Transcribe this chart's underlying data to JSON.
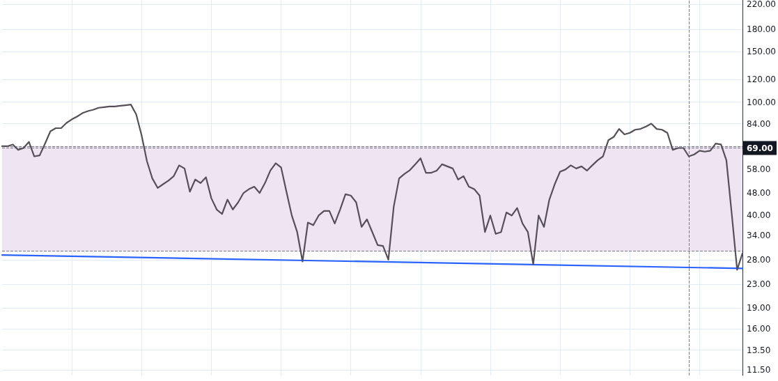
{
  "chart_data": {
    "type": "line",
    "categories": [
      null,
      null,
      null,
      null,
      null,
      null,
      null,
      null,
      null,
      null,
      null,
      null,
      null,
      null,
      null,
      null,
      null,
      null,
      null,
      null,
      null,
      null,
      null,
      null,
      null,
      null,
      null,
      null,
      null,
      null,
      null,
      null,
      null,
      null,
      null,
      null,
      null,
      null,
      null,
      null,
      null,
      null,
      null,
      null,
      null,
      null,
      null,
      null,
      null,
      null,
      null,
      null,
      null,
      null,
      null,
      null,
      null,
      null,
      null,
      null,
      null,
      null,
      null,
      null,
      null,
      null,
      null,
      null,
      null,
      null,
      null,
      null,
      null,
      null,
      null,
      null,
      null,
      null,
      null,
      null,
      null,
      null,
      null,
      null,
      null,
      null,
      null,
      null,
      null,
      null,
      null,
      null,
      null,
      null,
      null,
      null,
      null,
      null,
      null,
      null,
      null,
      null,
      null,
      null,
      null,
      null,
      null,
      null,
      null,
      null,
      null,
      null,
      null,
      null,
      null,
      null,
      null,
      null,
      null,
      null,
      null,
      null,
      null,
      null,
      null,
      null,
      null,
      null,
      null,
      null,
      null,
      null,
      null,
      null,
      null,
      null,
      null,
      null,
      null
    ],
    "series": [
      {
        "type": "line",
        "color": "#2962ff",
        "values": [
          29.1,
          null,
          null,
          null,
          null,
          null,
          null,
          null,
          null,
          null,
          null,
          null,
          null,
          null,
          null,
          null,
          null,
          null,
          null,
          null,
          null,
          null,
          null,
          null,
          null,
          null,
          null,
          null,
          null,
          null,
          null,
          null,
          null,
          null,
          null,
          null,
          null,
          null,
          null,
          null,
          null,
          null,
          null,
          null,
          null,
          null,
          null,
          null,
          null,
          null,
          null,
          null,
          null,
          null,
          null,
          null,
          null,
          null,
          null,
          null,
          null,
          null,
          null,
          null,
          null,
          null,
          null,
          null,
          null,
          null,
          null,
          null,
          null,
          null,
          null,
          null,
          null,
          null,
          null,
          null,
          null,
          null,
          null,
          null,
          null,
          null,
          null,
          null,
          null,
          null,
          null,
          null,
          null,
          null,
          null,
          null,
          null,
          null,
          null,
          null,
          null,
          null,
          null,
          null,
          null,
          null,
          null,
          null,
          null,
          null,
          null,
          null,
          null,
          null,
          null,
          null,
          null,
          null,
          null,
          null,
          null,
          null,
          null,
          null,
          null,
          null,
          null,
          null,
          null,
          null,
          null,
          null,
          null,
          null,
          null,
          null,
          null,
          null,
          26.1
        ]
      },
      {
        "color": "#555058",
        "values": [
          70,
          70,
          71,
          68,
          69,
          72.5,
          64.5,
          65,
          71.5,
          79,
          81,
          81,
          84.5,
          87,
          89,
          91.5,
          93,
          94,
          95.5,
          96,
          96.5,
          96.5,
          97,
          97.5,
          98,
          90.5,
          76.5,
          62,
          54,
          50,
          51.5,
          53,
          55,
          60,
          58.5,
          48.5,
          53.5,
          52,
          54.5,
          46,
          42,
          40.5,
          45.5,
          42,
          44.5,
          48,
          49.5,
          50.5,
          48,
          52,
          57.5,
          61,
          59,
          48.5,
          40,
          35,
          27.6,
          37.8,
          37,
          40,
          41.5,
          41.5,
          37.5,
          42,
          47.5,
          47,
          44.5,
          36.5,
          38.8,
          35,
          31.5,
          31.3,
          28,
          43,
          54,
          56,
          57.7,
          60.5,
          63.5,
          56.5,
          56.5,
          57.5,
          60.5,
          59.5,
          58.5,
          53.5,
          55,
          50.5,
          49.5,
          47,
          35,
          40,
          34.5,
          35,
          41,
          40,
          42.5,
          37.5,
          35,
          27,
          40,
          36.5,
          45.5,
          51.5,
          57,
          58,
          60,
          58.5,
          59.5,
          57.5,
          60,
          62.5,
          64.5,
          73.5,
          75.5,
          80.5,
          77,
          78,
          80,
          80.5,
          82,
          84,
          80.5,
          80,
          78,
          68,
          69,
          69,
          64.5,
          65.5,
          67.5,
          67,
          67.5,
          71.5,
          71,
          62.5,
          40.5,
          25.8,
          29.5
        ]
      }
    ],
    "log": true,
    "ylim": [
      11,
      228
    ],
    "yticks": [
      {
        "value": 11.5,
        "label": "11.50"
      },
      {
        "value": 13.5,
        "label": "13.50"
      },
      {
        "value": 16,
        "label": "16.00"
      },
      {
        "value": 19,
        "label": "19.00"
      },
      {
        "value": 23,
        "label": "23.00"
      },
      {
        "value": 28,
        "label": "28.00"
      },
      {
        "value": 34,
        "label": "34.00"
      },
      {
        "value": 40,
        "label": "40.00"
      },
      {
        "value": 48,
        "label": "48.00"
      },
      {
        "value": 58,
        "label": "58.00"
      },
      {
        "value": 84,
        "label": "84.00"
      },
      {
        "value": 100,
        "label": "100.00"
      },
      {
        "value": 120,
        "label": "120.00"
      },
      {
        "value": 150,
        "label": "150.00"
      },
      {
        "value": 180,
        "label": "180.00"
      },
      {
        "value": 220,
        "label": "220.00"
      }
    ],
    "bands": [
      {
        "axis": "y",
        "from": 30,
        "to": 70,
        "color": "#efe4f2"
      }
    ],
    "ref_lines": [
      {
        "axis": "y",
        "value": 70,
        "color": "#787b86",
        "line_style": "dashed"
      },
      {
        "axis": "y",
        "value": 30,
        "color": "#787b86",
        "line_style": "dashed"
      },
      {
        "axis": "y",
        "value": 69,
        "label": "69.00",
        "color": "#787b86",
        "line_style": "dashed"
      }
    ],
    "grid": true,
    "marker": "none",
    "line_style": "solid"
  }
}
